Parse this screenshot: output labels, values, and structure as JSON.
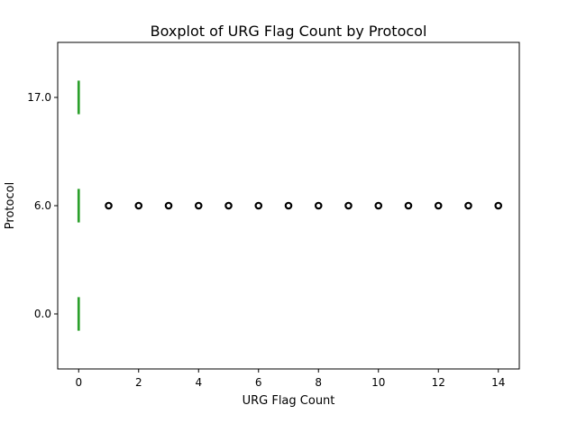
{
  "chart_data": {
    "type": "boxplot",
    "orientation": "horizontal",
    "title": "Boxplot of URG Flag Count by Protocol",
    "xlabel": "URG Flag Count",
    "ylabel": "Protocol",
    "xlim": [
      -0.7,
      14.7
    ],
    "xticks": [
      0,
      2,
      4,
      6,
      8,
      10,
      12,
      14
    ],
    "categories": [
      "0.0",
      "6.0",
      "17.0"
    ],
    "grid": false,
    "box_color": "#2ca02c",
    "series": [
      {
        "category": "0.0",
        "q1": 0,
        "median": 0,
        "q3": 0,
        "whisker_low": 0,
        "whisker_high": 0,
        "outliers": []
      },
      {
        "category": "6.0",
        "q1": 0,
        "median": 0,
        "q3": 0,
        "whisker_low": 0,
        "whisker_high": 0,
        "outliers": [
          1,
          2,
          3,
          4,
          5,
          6,
          7,
          8,
          9,
          10,
          11,
          12,
          13,
          14
        ]
      },
      {
        "category": "17.0",
        "q1": 0,
        "median": 0,
        "q3": 0,
        "whisker_low": 0,
        "whisker_high": 0,
        "outliers": []
      }
    ]
  }
}
